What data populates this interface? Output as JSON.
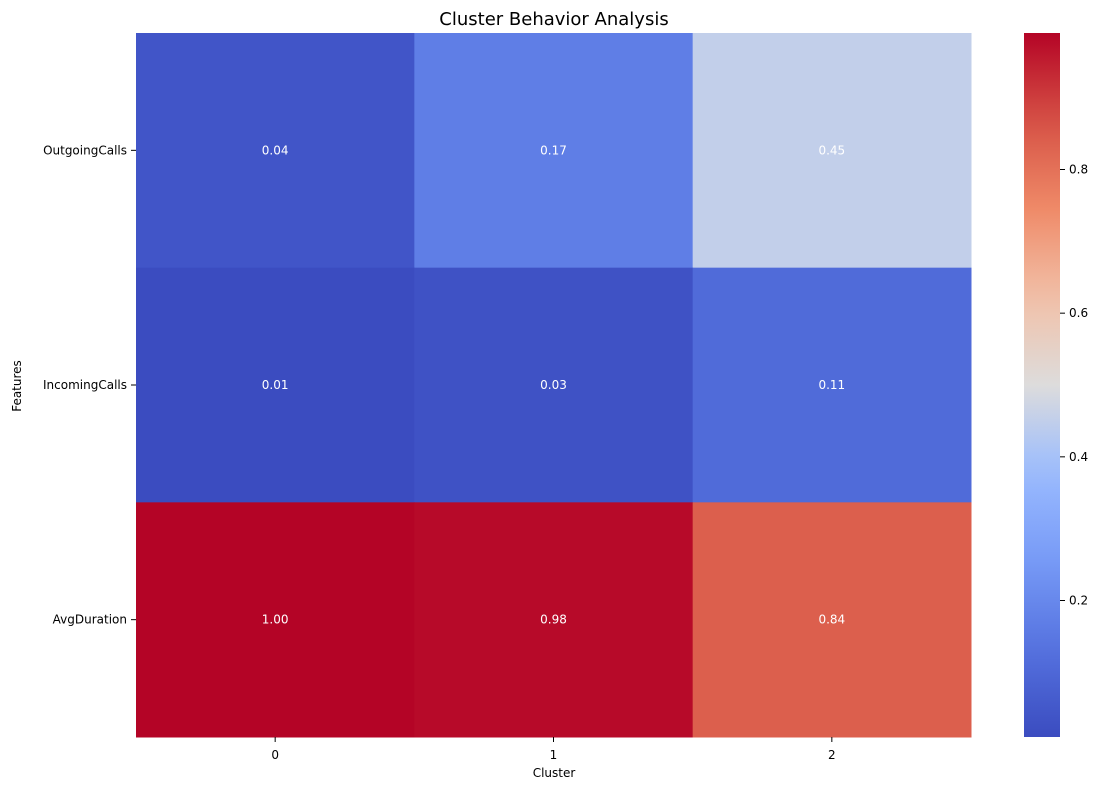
{
  "chart_data": {
    "type": "heatmap",
    "title": "Cluster Behavior Analysis",
    "xlabel": "Cluster",
    "ylabel": "Features",
    "x_categories": [
      "0",
      "1",
      "2"
    ],
    "y_categories": [
      "OutgoingCalls",
      "IncomingCalls",
      "AvgDuration"
    ],
    "values": [
      [
        0.04,
        0.17,
        0.45
      ],
      [
        0.01,
        0.03,
        0.11
      ],
      [
        1.0,
        0.98,
        0.84
      ]
    ],
    "value_labels": [
      [
        "0.04",
        "0.17",
        "0.45"
      ],
      [
        "0.01",
        "0.03",
        "0.11"
      ],
      [
        "1.00",
        "0.98",
        "0.84"
      ]
    ],
    "colormap": "coolwarm",
    "color_range": [
      0.01,
      0.99
    ],
    "colorbar_ticks": [
      0.2,
      0.4,
      0.6,
      0.8
    ],
    "colorbar_tick_labels": [
      "0.2",
      "0.4",
      "0.6",
      "0.8"
    ],
    "colors": {
      "low": "#3b4cc0",
      "mid": "#dddcdc",
      "high": "#b40426"
    }
  }
}
